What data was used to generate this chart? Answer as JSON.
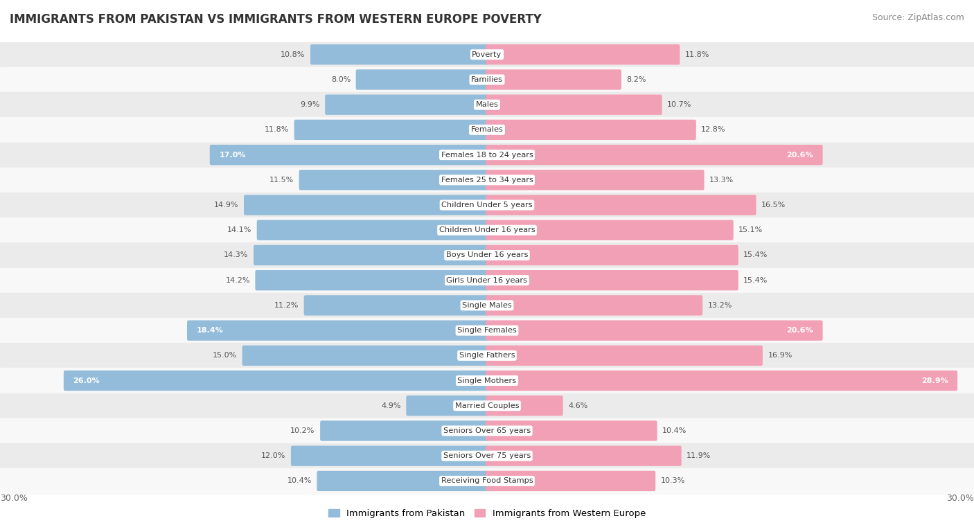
{
  "title": "IMMIGRANTS FROM PAKISTAN VS IMMIGRANTS FROM WESTERN EUROPE POVERTY",
  "source": "Source: ZipAtlas.com",
  "categories": [
    "Poverty",
    "Families",
    "Males",
    "Females",
    "Females 18 to 24 years",
    "Females 25 to 34 years",
    "Children Under 5 years",
    "Children Under 16 years",
    "Boys Under 16 years",
    "Girls Under 16 years",
    "Single Males",
    "Single Females",
    "Single Fathers",
    "Single Mothers",
    "Married Couples",
    "Seniors Over 65 years",
    "Seniors Over 75 years",
    "Receiving Food Stamps"
  ],
  "pakistan_values": [
    10.8,
    8.0,
    9.9,
    11.8,
    17.0,
    11.5,
    14.9,
    14.1,
    14.3,
    14.2,
    11.2,
    18.4,
    15.0,
    26.0,
    4.9,
    10.2,
    12.0,
    10.4
  ],
  "western_europe_values": [
    11.8,
    8.2,
    10.7,
    12.8,
    20.6,
    13.3,
    16.5,
    15.1,
    15.4,
    15.4,
    13.2,
    20.6,
    16.9,
    28.9,
    4.6,
    10.4,
    11.9,
    10.3
  ],
  "pakistan_color": "#92bcd9",
  "western_europe_color": "#f2a0b5",
  "row_bg_even": "#ebebeb",
  "row_bg_odd": "#f8f8f8",
  "axis_max": 30.0,
  "label_pakistan": "Immigrants from Pakistan",
  "label_western_europe": "Immigrants from Western Europe",
  "title_fontsize": 12,
  "source_fontsize": 9,
  "bar_height": 0.65
}
